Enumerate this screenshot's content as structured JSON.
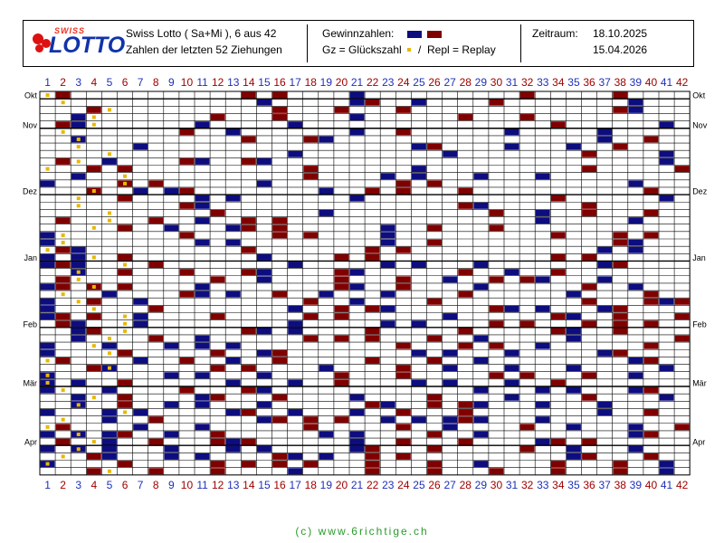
{
  "header": {
    "title_line1": "Swiss Lotto ( Sa+Mi ),  6 aus 42",
    "title_line2": "Zahlen der letzten 52 Ziehungen",
    "gewinn_label": "Gewinnzahlen:",
    "gz_label": "Gz = Glückszahl",
    "slash": "/",
    "repl_label": "Repl = Replay",
    "zeitraum_label": "Zeitraum:",
    "date_from": "18.10.2025",
    "date_to": "15.04.2026",
    "logo_swiss": "SWISS",
    "logo_lotto": "LOTTO"
  },
  "colors": {
    "navy": "#0d0d80",
    "maroon": "#800000",
    "gold": "#e8b800",
    "number_blue": "#1f2fb8",
    "number_red": "#a00000",
    "footer_green": "#2a9a2a"
  },
  "footer": "(c) www.6richtige.ch",
  "chart_data": {
    "type": "heatmap",
    "columns": [
      1,
      2,
      3,
      4,
      5,
      6,
      7,
      8,
      9,
      10,
      11,
      12,
      13,
      14,
      15,
      16,
      17,
      18,
      19,
      20,
      21,
      22,
      23,
      24,
      25,
      26,
      27,
      28,
      29,
      30,
      31,
      32,
      33,
      34,
      35,
      36,
      37,
      38,
      39,
      40,
      41,
      42
    ],
    "month_labels": [
      {
        "label": "Okt",
        "row": 1
      },
      {
        "label": "Nov",
        "row": 5
      },
      {
        "label": "Dez",
        "row": 14
      },
      {
        "label": "Jan",
        "row": 23
      },
      {
        "label": "Feb",
        "row": 32
      },
      {
        "label": "Mär",
        "row": 40
      },
      {
        "label": "Apr",
        "row": 48
      }
    ],
    "rows": [
      {
        "nums": [
          2,
          14,
          16,
          21,
          32,
          38
        ],
        "gz": 1
      },
      {
        "nums": [
          15,
          21,
          22,
          25,
          30,
          39
        ],
        "gz": 2
      },
      {
        "nums": [
          4,
          16,
          20,
          24,
          38,
          39
        ],
        "gz": 5
      },
      {
        "nums": [
          3,
          12,
          16,
          21,
          28,
          32
        ],
        "gz": 4
      },
      {
        "nums": [
          2,
          3,
          11,
          17,
          34,
          41
        ],
        "gz": 4
      },
      {
        "nums": [
          10,
          13,
          21,
          24,
          31,
          37
        ],
        "gz": 2
      },
      {
        "nums": [
          3,
          14,
          18,
          19,
          37,
          40
        ],
        "gz": 3
      },
      {
        "nums": [
          7,
          25,
          26,
          31,
          35,
          38
        ],
        "gz": 3
      },
      {
        "nums": [
          17,
          27,
          36,
          41
        ],
        "gz": 5
      },
      {
        "nums": [
          2,
          5,
          10,
          11,
          14,
          15,
          41
        ],
        "gz": 3
      },
      {
        "nums": [
          4,
          6,
          18,
          25,
          36,
          42
        ],
        "gz": 1
      },
      {
        "nums": [
          3,
          18,
          23,
          25,
          29,
          33
        ],
        "gz": 6
      },
      {
        "nums": [
          1,
          6,
          8,
          15,
          24,
          26,
          39
        ],
        "gz": 6
      },
      {
        "nums": [
          4,
          7,
          9,
          10,
          19,
          22,
          24,
          28,
          40
        ],
        "gz": 4
      },
      {
        "nums": [
          6,
          11,
          13,
          21,
          34,
          41
        ],
        "gz": 3
      },
      {
        "nums": [
          10,
          11,
          28,
          29,
          36
        ],
        "gz": 3
      },
      {
        "nums": [
          12,
          19,
          30,
          33,
          36,
          40
        ],
        "gz": 5
      },
      {
        "nums": [
          2,
          8,
          11,
          14,
          16,
          33,
          39
        ],
        "gz": 5
      },
      {
        "nums": [
          6,
          9,
          13,
          14,
          16,
          23,
          26,
          30
        ],
        "gz": 4
      },
      {
        "nums": [
          1,
          10,
          16,
          18,
          23,
          34,
          38,
          40
        ],
        "gz": 2
      },
      {
        "nums": [
          1,
          11,
          13,
          23,
          26,
          38,
          39
        ],
        "gz": 2
      },
      {
        "nums": [
          2,
          3,
          14,
          22,
          24,
          37,
          39
        ],
        "gz": 1
      },
      {
        "nums": [
          1,
          3,
          6,
          15,
          20,
          22,
          34,
          36
        ],
        "gz": 4
      },
      {
        "nums": [
          1,
          2,
          3,
          8,
          17,
          23,
          25,
          29,
          37,
          38
        ],
        "gz": 6
      },
      {
        "nums": [
          3,
          6,
          10,
          14,
          15,
          20,
          21,
          28,
          31,
          34
        ],
        "gz": 3
      },
      {
        "nums": [
          2,
          12,
          15,
          20,
          24,
          27,
          30,
          32,
          33,
          37
        ],
        "gz": 3
      },
      {
        "nums": [
          1,
          2,
          4,
          6,
          11,
          20,
          21,
          24,
          29,
          36,
          39
        ],
        "gz": 4
      },
      {
        "nums": [
          5,
          10,
          11,
          13,
          16,
          19,
          23,
          28,
          35,
          40
        ],
        "gz": 2
      },
      {
        "nums": [
          1,
          4,
          7,
          18,
          21,
          26,
          36,
          40,
          41,
          42
        ],
        "gz": 3
      },
      {
        "nums": [
          1,
          8,
          17,
          20,
          22,
          23,
          30,
          31,
          33,
          37,
          38
        ],
        "gz": 4
      },
      {
        "nums": [
          1,
          2,
          4,
          7,
          12,
          18,
          20,
          27,
          34,
          35,
          38,
          42
        ],
        "gz": 6
      },
      {
        "nums": [
          2,
          3,
          7,
          17,
          23,
          25,
          30,
          32,
          36,
          38,
          40
        ],
        "gz": 6
      },
      {
        "nums": [
          3,
          4,
          14,
          15,
          17,
          22,
          28,
          34,
          35,
          38
        ],
        "gz": 6
      },
      {
        "nums": [
          3,
          8,
          11,
          18,
          20,
          22,
          26,
          29,
          35,
          42
        ],
        "gz": 5
      },
      {
        "nums": [
          1,
          5,
          9,
          11,
          13,
          24,
          28,
          30,
          33,
          40
        ],
        "gz": 4
      },
      {
        "nums": [
          1,
          6,
          12,
          15,
          16,
          25,
          27,
          31,
          37,
          38
        ],
        "gz": 5
      },
      {
        "nums": [
          2,
          7,
          10,
          13,
          16,
          22,
          26,
          29,
          39,
          40
        ],
        "gz": 1
      },
      {
        "nums": [
          4,
          5,
          12,
          14,
          19,
          24,
          27,
          31,
          35,
          41
        ],
        "gz": 5
      },
      {
        "nums": [
          1,
          9,
          11,
          15,
          20,
          24,
          30,
          32,
          36,
          39
        ],
        "gz": 1
      },
      {
        "nums": [
          1,
          3,
          6,
          13,
          17,
          20,
          25,
          27,
          31,
          34
        ],
        "gz": 1
      },
      {
        "nums": [
          1,
          5,
          10,
          14,
          15,
          29,
          33,
          35,
          39,
          40
        ],
        "gz": 2
      },
      {
        "nums": [
          3,
          6,
          11,
          12,
          16,
          21,
          26,
          31,
          36,
          41
        ],
        "gz": 4
      },
      {
        "nums": [
          3,
          6,
          9,
          11,
          15,
          22,
          23,
          26,
          28,
          29,
          33,
          37
        ],
        "gz": 3
      },
      {
        "nums": [
          1,
          5,
          7,
          13,
          14,
          17,
          21,
          24,
          28,
          37,
          40
        ],
        "gz": 6
      },
      {
        "nums": [
          5,
          8,
          15,
          16,
          18,
          20,
          23,
          25,
          27,
          28,
          29,
          33
        ],
        "gz": 2
      },
      {
        "nums": [
          2,
          7,
          11,
          18,
          24,
          27,
          32,
          35,
          39,
          42
        ],
        "gz": 1
      },
      {
        "nums": [
          1,
          3,
          5,
          6,
          9,
          12,
          19,
          21,
          26,
          29,
          39,
          40
        ],
        "gz": 3
      },
      {
        "nums": [
          2,
          5,
          8,
          12,
          13,
          14,
          21,
          24,
          28,
          33,
          34,
          36
        ],
        "gz": 4
      },
      {
        "nums": [
          1,
          3,
          5,
          9,
          13,
          15,
          21,
          22,
          26,
          32,
          35,
          39
        ],
        "gz": 3
      },
      {
        "nums": [
          4,
          5,
          9,
          11,
          16,
          17,
          19,
          22,
          24,
          35,
          36,
          40
        ],
        "gz": 2
      },
      {
        "nums": [
          1,
          6,
          12,
          14,
          16,
          18,
          22,
          26,
          29,
          34,
          38,
          41
        ],
        "gz": 1
      },
      {
        "nums": [
          4,
          8,
          12,
          17,
          22,
          26,
          30,
          34,
          38,
          41
        ],
        "gz": 5
      }
    ]
  }
}
